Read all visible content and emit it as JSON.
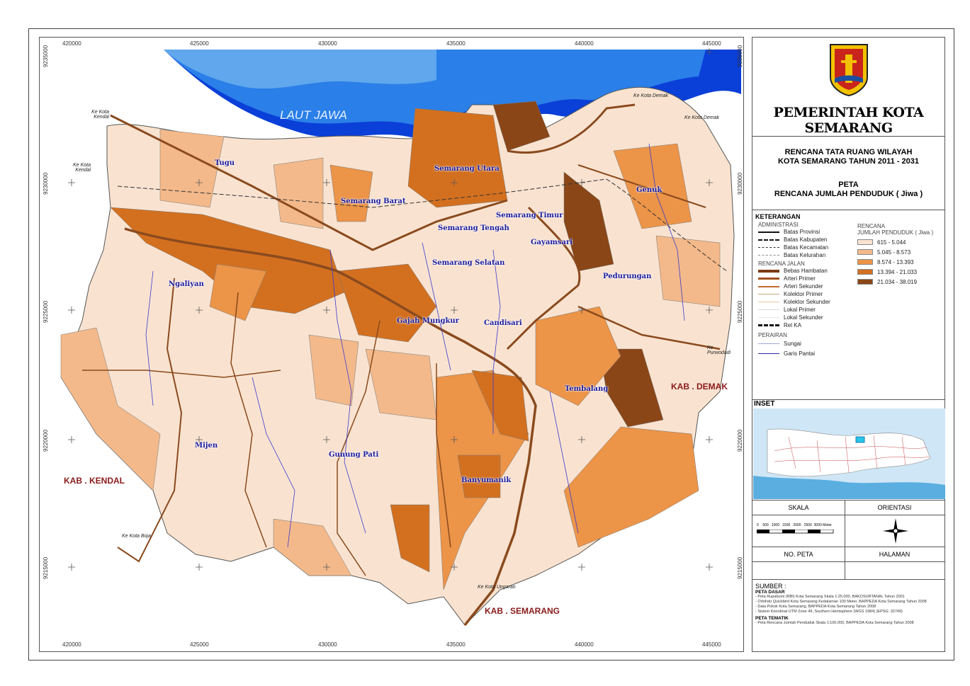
{
  "map": {
    "easting_ticks": [
      "420000",
      "425000",
      "430000",
      "435000",
      "440000",
      "445000"
    ],
    "northing_ticks": [
      "9235000",
      "9230000",
      "9225000",
      "9220000",
      "9215000"
    ],
    "sea_label": "LAUT JAWA",
    "kecamatan": [
      "Tugu",
      "Semarang Utara",
      "Semarang Barat",
      "Semarang Timur",
      "Semarang Tengah",
      "Genuk",
      "Gayamsari",
      "Semarang Selatan",
      "Ngaliyan",
      "Pedurungan",
      "Gajah Mungkur",
      "Candisari",
      "Tembalang",
      "Mijen",
      "Gunung Pati",
      "Banyumanik"
    ],
    "kabupaten": [
      "KAB . KENDAL",
      "KAB . DEMAK",
      "KAB . SEMARANG"
    ],
    "directions": [
      "Ke Kota Kendal",
      "Ke Kota Kendal",
      "Ke Kota Demak",
      "Ke Kota Demak",
      "Ke Purwodadi",
      "Ke Kota Boja",
      "Ke Kota Ungaran"
    ]
  },
  "panel": {
    "government": "PEMERINTAH KOTA SEMARANG",
    "plan_title_1": "RENCANA TATA RUANG WILAYAH",
    "plan_title_2": "KOTA SEMARANG TAHUN 2011 - 2031",
    "map_label": "PETA",
    "map_title": "RENCANA JUMLAH PENDUDUK ( Jiwa )",
    "keterangan": "KETERANGAN",
    "administrasi_title": "ADMINISTRASI",
    "administrasi": [
      "Batas Provinsi",
      "Batas Kabupaten",
      "Batas Kecamatan",
      "Batas Kelurahan"
    ],
    "jalan_title": "RENCANA JALAN",
    "jalan": [
      "Bebas Hambatan",
      "Arteri Primer",
      "Arteri Sekunder",
      "Kolektor Primer",
      "Kolektor Sekunder",
      "Lokal Primer",
      "Lokal Sekunder",
      "Rel KA"
    ],
    "perairan_title": "PERAIRAN",
    "perairan": [
      "Sungai",
      "Garis Pantai"
    ],
    "population_title_1": "RENCANA",
    "population_title_2": "JUMLAH PENDUDUK ( Jiwa )",
    "population_classes": [
      {
        "label": "615 - 5.044",
        "color": "#f9e3d0"
      },
      {
        "label": "5.045 - 8.573",
        "color": "#f4b98a"
      },
      {
        "label": "8.574 - 13.393",
        "color": "#ec9448"
      },
      {
        "label": "13.394 - 21.033",
        "color": "#d3701f"
      },
      {
        "label": "21.034 - 38.019",
        "color": "#8a4617"
      }
    ],
    "inset": "INSET",
    "skala": "SKALA",
    "orientasi": "ORIENTASI",
    "scale_ticks": [
      "0",
      "500",
      "1000",
      "1500",
      "2000",
      "2500",
      "3000 Meter"
    ],
    "no_peta": "NO. PETA",
    "halaman": "HALAMAN",
    "sumber": "SUMBER :",
    "peta_dasar": "PETA DASAR",
    "sources": [
      "- Peta Rupabumi (RBI) Kota Semarang Skala 1:25.000, BAKOSURTANAL Tahun 2001",
      "- Ortofoto Quickbird Kota Semarang Kedalaman 100 Meter, BAPPEDA Kota Semarang Tahun 2008",
      "- Data Pokok Kota Semarang, BAPPEDA Kota Semarang Tahun 2008",
      "- Sistem Koordinat UTM Zone 49, Southern Hemisphere (WGS 1984) (EPSG: 32749)"
    ],
    "peta_tematik": "PETA TEMATIK",
    "tematik": [
      "- Peta Rencana Jumlah Penduduk Skala 1:100.000, BAPPEDA Kota Semarang Tahun 2008"
    ]
  },
  "colors": {
    "sea_deep": "#0a3fd8",
    "sea_mid": "#2a7fe8",
    "sea_light": "#8cc8f0",
    "road": "#8a4a1e",
    "river": "#3a3ad0"
  }
}
